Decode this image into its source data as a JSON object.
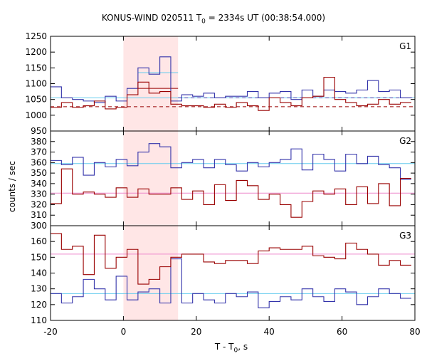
{
  "chart_data": {
    "type": "line",
    "title_parts": {
      "pre": "KONUS-WIND 020511 T",
      "sub": "0",
      "post": " = 2334s UT (00:38:54.000)"
    },
    "xlabel_parts": {
      "pre": "T - T",
      "sub": "0",
      "post": ", s"
    },
    "ylabel": "counts / sec",
    "xlim": [
      -20,
      80
    ],
    "xticks": [
      "-20",
      "0",
      "20",
      "40",
      "60",
      "80"
    ],
    "shaded_interval": [
      0,
      15
    ],
    "colors": {
      "blue": "#3333aa",
      "red": "#990000",
      "light_blue": "#66ccee",
      "pink": "#ee88cc",
      "shade": "#ffe6e6"
    },
    "bin_edges": [
      -20,
      -17,
      -14,
      -11,
      -8,
      -5,
      -2,
      1,
      4,
      7,
      10,
      13,
      16,
      19,
      22,
      25,
      28,
      31,
      34,
      37,
      40,
      43,
      46,
      49,
      52,
      55,
      58,
      61,
      64,
      67,
      70,
      73,
      76,
      79
    ],
    "panels": [
      {
        "name": "G1",
        "ylim": [
          950,
          1250
        ],
        "yticks": [
          "950",
          "1000",
          "1050",
          "1100",
          "1150",
          "1200",
          "1250"
        ],
        "series": [
          {
            "color": "blue",
            "values": [
              1090,
              1055,
              1050,
              1045,
              1040,
              1060,
              1045,
              1085,
              1150,
              1130,
              1185,
              1045,
              1065,
              1060,
              1070,
              1055,
              1060,
              1060,
              1075,
              1055,
              1070,
              1075,
              1050,
              1080,
              1060,
              1080,
              1075,
              1070,
              1080,
              1110,
              1075,
              1080,
              1055
            ]
          },
          {
            "color": "red",
            "values": [
              1025,
              1040,
              1025,
              1030,
              1045,
              1020,
              1025,
              1065,
              1105,
              1070,
              1075,
              1035,
              1030,
              1030,
              1025,
              1035,
              1025,
              1040,
              1030,
              1015,
              1055,
              1040,
              1030,
              1055,
              1060,
              1120,
              1050,
              1040,
              1030,
              1035,
              1050,
              1035,
              1040
            ]
          }
        ],
        "levels": [
          {
            "color": "light_blue",
            "from": -20,
            "to": 80,
            "value": 1055,
            "dash": false
          },
          {
            "color": "light_blue",
            "from": 4,
            "to": 15,
            "value": 1135,
            "dash": false
          },
          {
            "color": "blue",
            "from": 15,
            "to": 80,
            "value": 1055,
            "dash": true
          },
          {
            "color": "red",
            "from": -20,
            "to": 80,
            "value": 1027,
            "dash": true
          },
          {
            "color": "red",
            "from": 4,
            "to": 15,
            "value": 1085,
            "dash": false
          }
        ]
      },
      {
        "name": "G2",
        "ylim": [
          300,
          390
        ],
        "yticks": [
          "300",
          "310",
          "320",
          "330",
          "340",
          "350",
          "360",
          "370",
          "380"
        ],
        "series": [
          {
            "color": "blue",
            "values": [
              362,
              358,
              365,
              348,
              360,
              356,
              363,
              357,
              370,
              378,
              375,
              355,
              360,
              363,
              355,
              363,
              358,
              352,
              360,
              356,
              360,
              363,
              373,
              353,
              368,
              363,
              352,
              368,
              359,
              366,
              358,
              355,
              344
            ]
          },
          {
            "color": "red",
            "values": [
              321,
              354,
              330,
              332,
              330,
              327,
              336,
              327,
              335,
              330,
              330,
              336,
              325,
              333,
              320,
              339,
              324,
              343,
              338,
              325,
              330,
              320,
              308,
              323,
              333,
              330,
              335,
              320,
              337,
              321,
              340,
              319,
              345
            ]
          }
        ],
        "levels": [
          {
            "color": "light_blue",
            "from": -20,
            "to": 80,
            "value": 359,
            "dash": false
          },
          {
            "color": "pink",
            "from": -20,
            "to": 80,
            "value": 331,
            "dash": false
          }
        ]
      },
      {
        "name": "G3",
        "ylim": [
          110,
          170
        ],
        "yticks": [
          "110",
          "120",
          "130",
          "140",
          "150",
          "160"
        ],
        "series": [
          {
            "color": "blue",
            "values": [
              127,
              121,
              125,
              136,
              130,
              123,
              138,
              123,
              128,
              130,
              121,
              149,
              121,
              127,
              123,
              121,
              127,
              125,
              128,
              118,
              122,
              125,
              123,
              130,
              125,
              122,
              130,
              128,
              120,
              125,
              130,
              127,
              124
            ]
          },
          {
            "color": "red",
            "values": [
              165,
              155,
              157,
              139,
              164,
              143,
              150,
              155,
              133,
              136,
              144,
              150,
              152,
              152,
              147,
              146,
              148,
              148,
              146,
              154,
              156,
              155,
              155,
              157,
              151,
              150,
              149,
              159,
              155,
              152,
              145,
              148,
              145
            ]
          }
        ],
        "levels": [
          {
            "color": "light_blue",
            "from": -20,
            "to": 80,
            "value": 127,
            "dash": false
          },
          {
            "color": "pink",
            "from": -20,
            "to": 80,
            "value": 152,
            "dash": false
          }
        ]
      }
    ]
  }
}
